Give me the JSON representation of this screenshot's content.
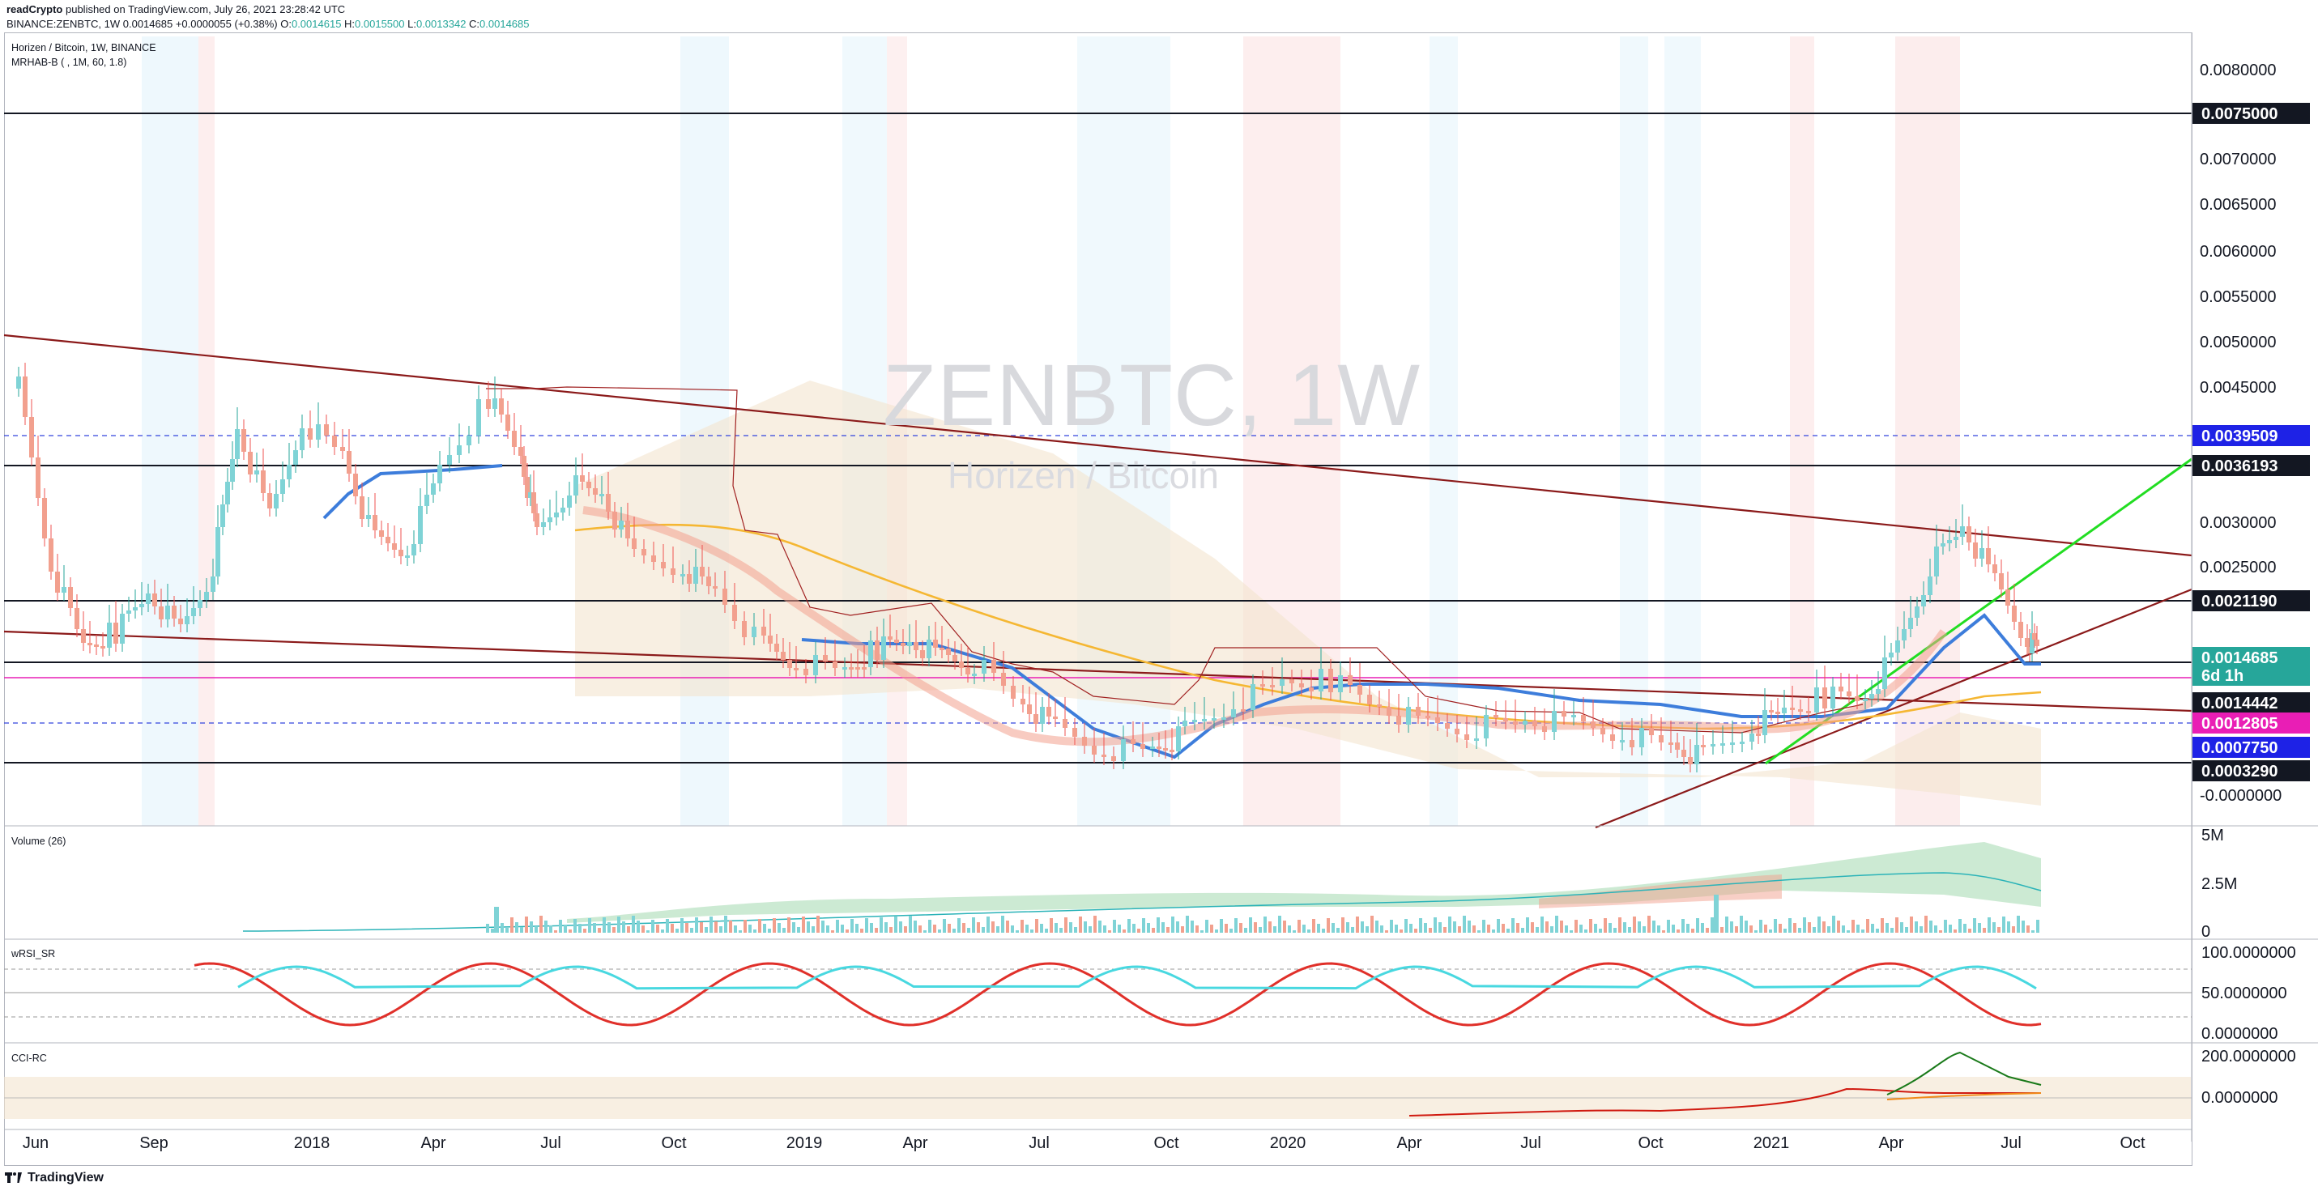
{
  "header": {
    "author": "readCrypto",
    "published": "published on TradingView.com, July 26, 2021 23:28:42 UTC",
    "symbol_line": "BINANCE:ZENBTC, 1W",
    "price": "0.0014685",
    "change": "+0.0000055 (+0.38%)",
    "o_label": "O:",
    "o": "0.0014615",
    "h_label": "H:",
    "h": "0.0015500",
    "l_label": "L:",
    "l": "0.0013342",
    "c_label": "C:",
    "c": "0.0014685"
  },
  "chart": {
    "legend_line1": "Horizen / Bitcoin, 1W, BINANCE",
    "legend_line2": "MRHAB-B ( , 1M, 60, 1.8)",
    "watermark_symbol": "ZENBTC, 1W",
    "watermark_name": "Horizen / Bitcoin",
    "price_axis_ticks": [
      "0.0080000",
      "0.0070000",
      "0.0065000",
      "0.0060000",
      "0.0055000",
      "0.0050000",
      "0.0045000",
      "0.0030000",
      "0.0025000",
      "-0.0000000"
    ],
    "price_tags": [
      {
        "value": "0.0075000",
        "bg": "#131722",
        "fg": "#ffffff"
      },
      {
        "value": "0.0039509",
        "bg": "#1e22e6",
        "fg": "#ffffff"
      },
      {
        "value": "0.0036193",
        "bg": "#131722",
        "fg": "#ffffff"
      },
      {
        "value": "0.0021190",
        "bg": "#131722",
        "fg": "#ffffff"
      },
      {
        "value": "0.0014685",
        "bg": "#26a69a",
        "fg": "#ffffff"
      },
      {
        "value": "6d 1h",
        "bg": "#26a69a",
        "fg": "#ffffff"
      },
      {
        "value": "0.0014442",
        "bg": "#131722",
        "fg": "#ffffff"
      },
      {
        "value": "0.0012805",
        "bg": "#e91eb5",
        "fg": "#ffffff"
      },
      {
        "value": "0.0007750",
        "bg": "#1e22e6",
        "fg": "#ffffff"
      },
      {
        "value": "0.0003290",
        "bg": "#131722",
        "fg": "#ffffff"
      }
    ],
    "time_axis": [
      "Jun",
      "Sep",
      "2018",
      "Apr",
      "Jul",
      "Oct",
      "2019",
      "Apr",
      "Jul",
      "Oct",
      "2020",
      "Apr",
      "Jul",
      "Oct",
      "2021",
      "Apr",
      "Jul",
      "Oct"
    ]
  },
  "panes": {
    "volume": {
      "title": "Volume (26)",
      "ticks": [
        "5M",
        "2.5M",
        "0"
      ]
    },
    "wrsi": {
      "title": "wRSI_SR",
      "ticks": [
        "100.0000000",
        "50.0000000",
        "0.0000000"
      ]
    },
    "cci": {
      "title": "CCI-RC",
      "ticks": [
        "200.0000000",
        "0.0000000"
      ]
    }
  },
  "footer": {
    "brand": "TradingView"
  },
  "colors": {
    "up": "#26a69a",
    "down": "#ef5350",
    "ha_up": "#7fd3d6",
    "ha_down": "#f2a08e",
    "trend": "#8b1a1a",
    "green_line": "#22dd22",
    "blue_line": "#3d7ddb",
    "ma_orange": "#f5b733",
    "magenta": "#e91eb5",
    "dash_blue": "#3344dd"
  }
}
